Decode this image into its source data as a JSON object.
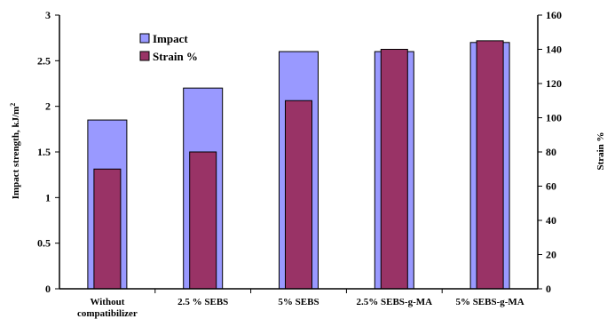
{
  "chart_data": {
    "type": "bar",
    "categories": [
      [
        "Without",
        "compatibilizer"
      ],
      [
        "2.5 % SEBS"
      ],
      [
        "5% SEBS"
      ],
      [
        "2.5% SEBS-g-MA"
      ],
      [
        "5% SEBS-g-MA"
      ]
    ],
    "series": [
      {
        "name": "Impact",
        "axis": "left",
        "color": "#9999ff",
        "values": [
          1.85,
          2.2,
          2.6,
          2.6,
          2.7
        ]
      },
      {
        "name": "Strain %",
        "axis": "right",
        "color": "#993366",
        "values": [
          70,
          80,
          110,
          140,
          145
        ]
      }
    ],
    "ylabel": "Impact strength, kJ/m",
    "ylabel_superscript": "2",
    "y2label": "Strain %",
    "ylim": [
      0,
      3
    ],
    "y2lim": [
      0,
      160
    ],
    "yticks": [
      "0",
      "0.5",
      "1",
      "1.5",
      "2",
      "2.5",
      "3"
    ],
    "y2ticks": [
      "0",
      "20",
      "40",
      "60",
      "80",
      "100",
      "120",
      "140",
      "160"
    ],
    "legend_position": "top-left",
    "grid": false
  }
}
